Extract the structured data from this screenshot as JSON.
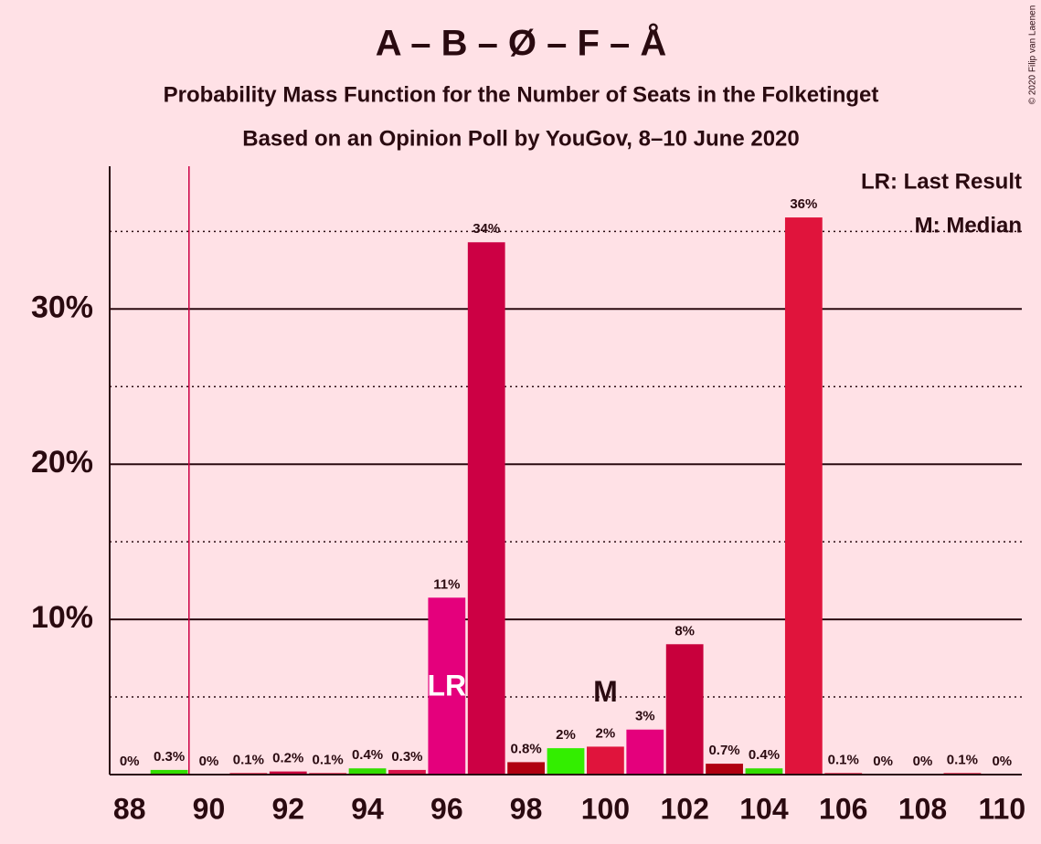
{
  "chart_data": {
    "type": "bar",
    "title": "A – B – Ø – F – Å",
    "subtitle": [
      "Probability Mass Function for the Number of Seats in the Folketinget",
      "Based on an Opinion Poll by YouGov, 8–10 June 2020"
    ],
    "copyright": "© 2020 Filip van Laenen",
    "x": [
      88,
      89,
      90,
      91,
      92,
      93,
      94,
      95,
      96,
      97,
      98,
      99,
      100,
      101,
      102,
      103,
      104,
      105,
      106,
      107,
      108,
      109,
      110
    ],
    "values": [
      0,
      0.3,
      0,
      0.1,
      0.2,
      0.1,
      0.4,
      0.3,
      11.4,
      34.3,
      0.8,
      1.7,
      1.8,
      2.9,
      8.4,
      0.7,
      0.4,
      35.9,
      0.1,
      0,
      0,
      0.1,
      0
    ],
    "value_labels": [
      "0%",
      "0.3%",
      "0%",
      "0.1%",
      "0.2%",
      "0.1%",
      "0.4%",
      "0.3%",
      "11%",
      "34%",
      "0.8%",
      "2%",
      "2%",
      "3%",
      "8%",
      "0.7%",
      "0.4%",
      "36%",
      "0.1%",
      "0%",
      "0%",
      "0.1%",
      "0%"
    ],
    "colors": [
      "#e0143c",
      "#33dd00",
      "#e0143c",
      "#e0143c",
      "#c8003c",
      "#e0143c",
      "#33dd00",
      "#d8144a",
      "#e4007c",
      "#cc0044",
      "#b00010",
      "#33ee00",
      "#e0143c",
      "#e4007c",
      "#c8003c",
      "#b00010",
      "#33dd00",
      "#e0143c",
      "#e0143c",
      "#e0143c",
      "#e0143c",
      "#e0143c",
      "#e0143c"
    ],
    "xlim": [
      87.5,
      110.5
    ],
    "xticks": [
      88,
      90,
      92,
      94,
      96,
      98,
      100,
      102,
      104,
      106,
      108,
      110
    ],
    "ylim": [
      0,
      39.2
    ],
    "yticks": [
      {
        "value": 10,
        "label": "10%"
      },
      {
        "value": 20,
        "label": "20%"
      },
      {
        "value": 30,
        "label": "30%"
      }
    ],
    "minor_yticks": [
      5,
      15,
      25,
      35
    ],
    "last_result_line": 89.5,
    "annotations": [
      {
        "text": "LR",
        "x": 96,
        "color": "#ffffff"
      },
      {
        "text": "M",
        "x": 100,
        "color": "#2a0a10"
      }
    ],
    "legend": [
      "LR: Last Result",
      "M: Median"
    ]
  }
}
